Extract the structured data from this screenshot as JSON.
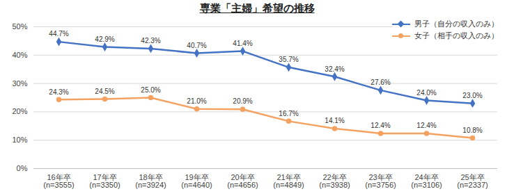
{
  "chart_data": {
    "type": "line",
    "title": "専業「主婦」希望の推移",
    "categories": [
      "16年卒\n(n=3555)",
      "17年卒\n(n=3350)",
      "18年卒\n(n=3924)",
      "19年卒\n(n=4640)",
      "20年卒\n(n=4656)",
      "21年卒\n(n=4849)",
      "22年卒\n(n=3938)",
      "23年卒\n(n=3756)",
      "24年卒\n(n=3106)",
      "25年卒\n(n=2337)"
    ],
    "series": [
      {
        "name": "男子（自分の収入のみ）",
        "color": "#4472c4",
        "marker": "diamond",
        "values": [
          44.7,
          42.9,
          42.3,
          40.7,
          41.4,
          35.7,
          32.4,
          27.6,
          24.0,
          23.0
        ],
        "value_labels": [
          "44.7%",
          "42.9%",
          "42.3%",
          "40.7%",
          "41.4%",
          "35.7%",
          "32.4%",
          "27.6%",
          "24.0%",
          "23.0%"
        ]
      },
      {
        "name": "女子（相手の収入のみ）",
        "color": "#f4a261",
        "marker": "circle",
        "values": [
          24.3,
          24.5,
          25.0,
          21.0,
          20.9,
          16.7,
          14.1,
          12.4,
          12.4,
          10.8
        ],
        "value_labels": [
          "24.3%",
          "24.5%",
          "25.0%",
          "21.0%",
          "20.9%",
          "16.7%",
          "14.1%",
          "12.4%",
          "12.4%",
          "10.8%"
        ]
      }
    ],
    "ylim": [
      0,
      50
    ],
    "yticks": [
      {
        "value": 0,
        "label": "0%"
      },
      {
        "value": 10,
        "label": "10%"
      },
      {
        "value": 20,
        "label": "20%"
      },
      {
        "value": 30,
        "label": "30%"
      },
      {
        "value": 40,
        "label": "40%"
      },
      {
        "value": 50,
        "label": "50%"
      }
    ],
    "grid": true,
    "legend": "top-right",
    "data_labels": true
  }
}
